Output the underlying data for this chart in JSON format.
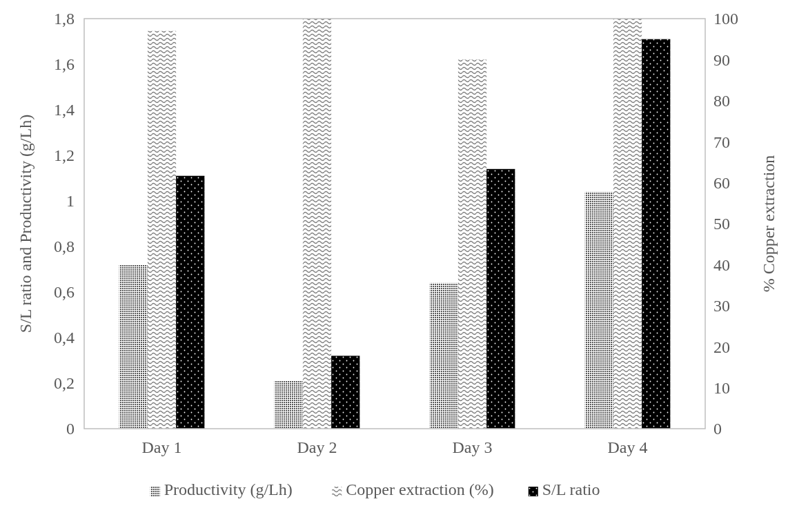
{
  "chart_data": {
    "type": "bar",
    "ylabel": "S/L ratio and Productivity (g/Lh)",
    "y2label": "% Copper extraction",
    "categories": [
      "Day 1",
      "Day 2",
      "Day 3",
      "Day 4"
    ],
    "series": [
      {
        "name": "Productivity (g/Lh)",
        "color": "#595959",
        "values": [
          0.72,
          0.21,
          0.64,
          1.04
        ]
      },
      {
        "name": "Copper extraction (%)",
        "color": "#7f7f7f",
        "axis": "y2",
        "values": [
          97,
          100,
          90,
          100
        ]
      },
      {
        "name": "S/L ratio",
        "color": "#000000",
        "values": [
          1.11,
          0.32,
          1.14,
          1.71
        ]
      }
    ],
    "ylim": [
      0,
      1.8
    ],
    "yticks": [
      0,
      {
        "value": 0.2,
        "label": "0,2"
      },
      {
        "value": 0.4,
        "label": "0,4"
      },
      {
        "value": 0.6,
        "label": "0,6"
      },
      {
        "value": 0.8,
        "label": "0,8"
      },
      1,
      {
        "value": 1.2,
        "label": "1,2"
      },
      {
        "value": 1.4,
        "label": "1,4"
      },
      {
        "value": 1.6,
        "label": "1,6"
      },
      {
        "value": 1.8,
        "label": "1,8"
      }
    ],
    "y2lim": [
      0,
      100
    ],
    "y2ticks": [
      0,
      10,
      20,
      30,
      40,
      50,
      60,
      70,
      80,
      90,
      100
    ],
    "grid": false,
    "legend": "bottom"
  }
}
